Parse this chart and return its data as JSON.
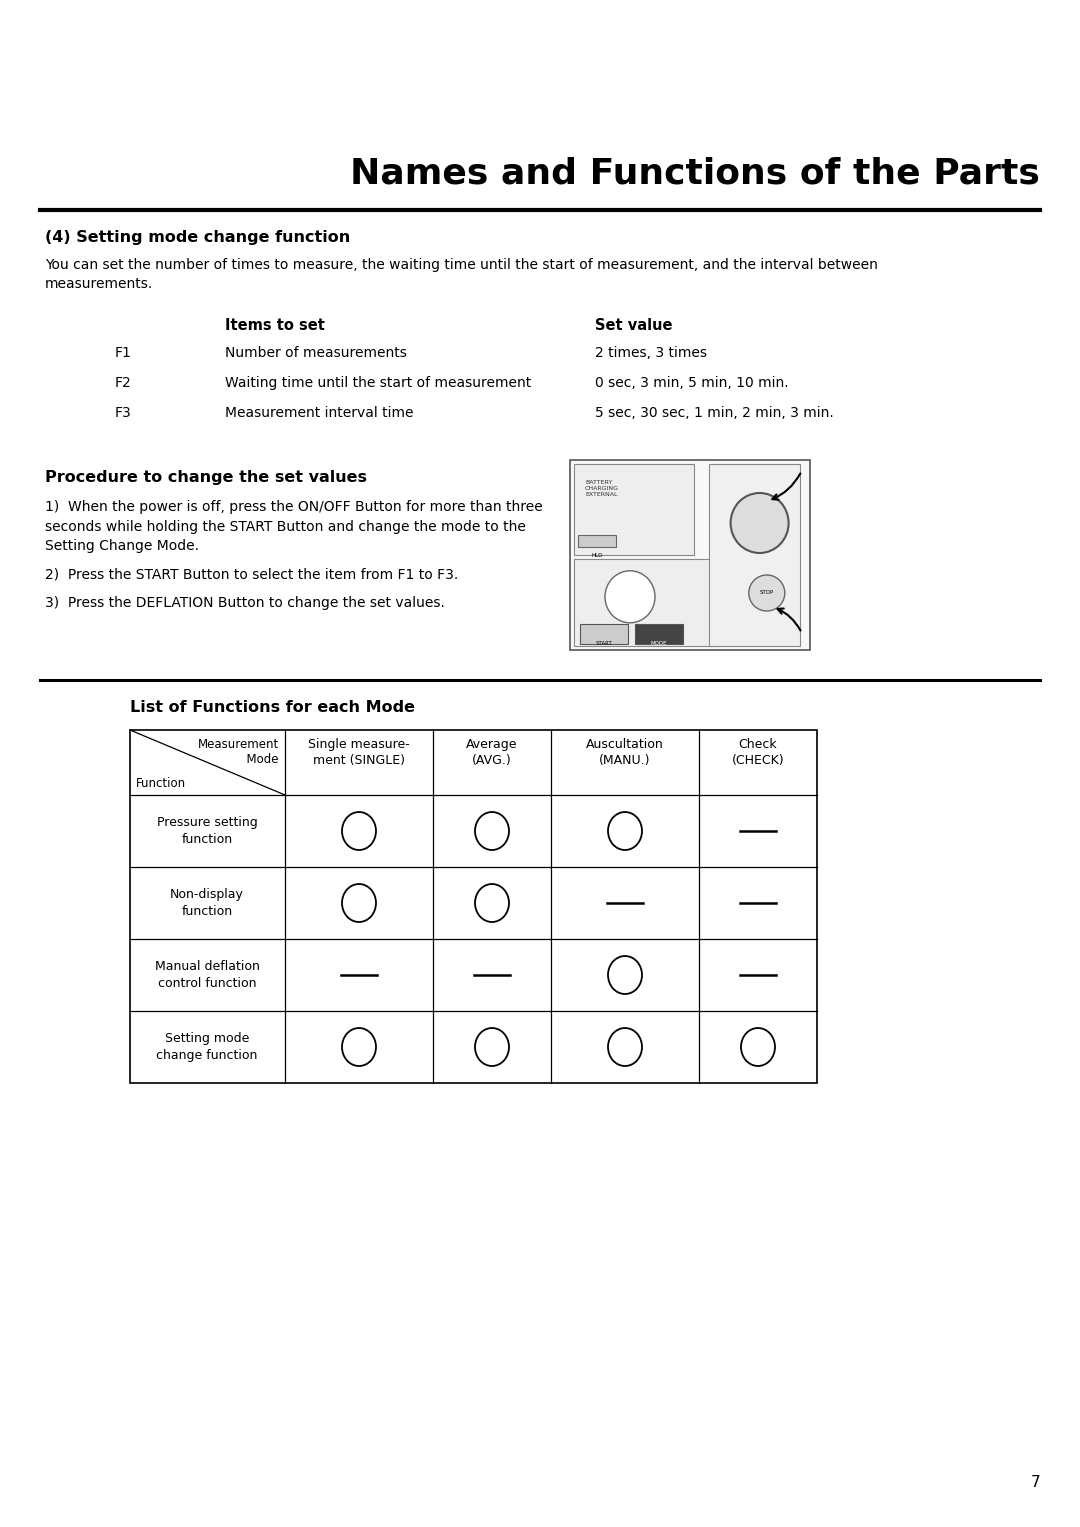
{
  "title": "Names and Functions of the Parts",
  "section_title": "(4) Setting mode change function",
  "intro_text": "You can set the number of times to measure, the waiting time until the start of measurement, and the interval between\nmeasurements.",
  "table1_header_col1": "Items to set",
  "table1_header_col2": "Set value",
  "table1_rows": [
    [
      "F1",
      "Number of measurements",
      "2 times, 3 times"
    ],
    [
      "F2",
      "Waiting time until the start of measurement",
      "0 sec, 3 min, 5 min, 10 min."
    ],
    [
      "F3",
      "Measurement interval time",
      "5 sec, 30 sec, 1 min, 2 min, 3 min."
    ]
  ],
  "section2_title": "Procedure to change the set values",
  "step1": "When the power is off, press the ON/OFF Button for more than three\nseconds while holding the START Button and change the mode to the\nSetting Change Mode.",
  "step2": "Press the START Button to select the item from F1 to F3.",
  "step3": "Press the DEFLATION Button to change the set values.",
  "section3_title": "List of Functions for each Mode",
  "table2_col_headers": [
    "Single measure-\nment (SINGLE)",
    "Average\n(AVG.)",
    "Auscultation\n(MANU.)",
    "Check\n(CHECK)"
  ],
  "table2_row_headers": [
    "Pressure setting\nfunction",
    "Non-display\nfunction",
    "Manual deflation\ncontrol function",
    "Setting mode\nchange function"
  ],
  "table2_data": [
    [
      "O",
      "O",
      "O",
      "-"
    ],
    [
      "O",
      "O",
      "-",
      "-"
    ],
    [
      "-",
      "-",
      "O",
      "-"
    ],
    [
      "O",
      "O",
      "O",
      "O"
    ]
  ],
  "page_number": "7",
  "bg_color": "#ffffff"
}
